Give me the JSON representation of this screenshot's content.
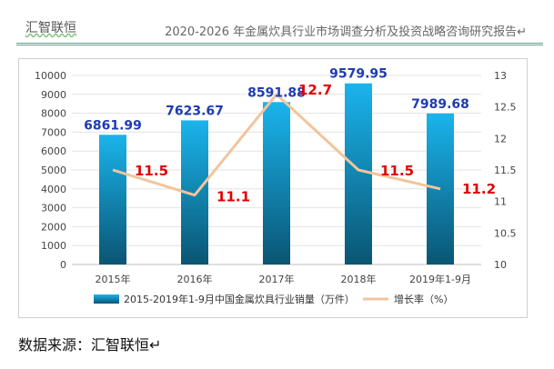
{
  "header": {
    "left_text": "汇智联恒",
    "right_text": "2020-2026 年金属炊具行业市场调查分析及投资战略咨询研究报告↵"
  },
  "source_text": "数据来源：汇智联恒↵",
  "chart_data": {
    "type": "bar+line",
    "categories": [
      "2015年",
      "2016年",
      "2017年",
      "2018年",
      "2019年1-9月"
    ],
    "series": [
      {
        "name": "2015-2019年1-9月中国金属炊具行业销量（万件）",
        "type": "bar",
        "axis": "left",
        "values": [
          6861.99,
          7623.67,
          8591.88,
          9579.95,
          7989.68
        ],
        "labels": [
          "6861.99",
          "7623.67",
          "8591.88",
          "9579.95",
          "7989.68"
        ],
        "color_top": "#1ab4ec",
        "color_bottom": "#0a5573",
        "label_color": "#1f3bb3"
      },
      {
        "name": "增长率（%）",
        "type": "line",
        "axis": "right",
        "values": [
          11.5,
          11.1,
          12.7,
          11.5,
          11.2
        ],
        "labels": [
          "11.5",
          "11.1",
          "12.7",
          "11.5",
          "11.2"
        ],
        "color": "#f3c49c",
        "label_color": "#e00000"
      }
    ],
    "y_left": {
      "min": 0,
      "max": 10000,
      "ticks": [
        "0",
        "1000",
        "2000",
        "3000",
        "4000",
        "5000",
        "6000",
        "7000",
        "8000",
        "9000",
        "10000"
      ]
    },
    "y_right": {
      "min": 10,
      "max": 13,
      "ticks": [
        "10",
        "10.5",
        "11",
        "11.5",
        "12",
        "12.5",
        "13"
      ]
    },
    "grid": true,
    "legend_position": "bottom"
  }
}
